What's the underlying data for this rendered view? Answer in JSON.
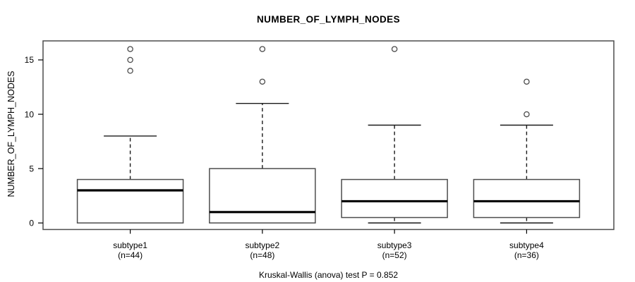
{
  "chart_data": {
    "type": "boxplot",
    "title": "NUMBER_OF_LYMPH_NODES",
    "xlabel": "",
    "ylabel": "NUMBER_OF_LYMPH_NODES",
    "yticks": [
      0,
      5,
      10,
      15
    ],
    "ylim": [
      -0.6,
      16.75
    ],
    "grid": false,
    "legend": "none",
    "caption": "Kruskal-Wallis (anova) test P = 0.852",
    "groups": [
      {
        "label": "subtype1",
        "sublabel": "(n=44)",
        "n": 44,
        "whisker_low": 0,
        "q1": 0,
        "median": 3,
        "q3": 4,
        "whisker_high": 8,
        "outliers": [
          14,
          15,
          16
        ]
      },
      {
        "label": "subtype2",
        "sublabel": "(n=48)",
        "n": 48,
        "whisker_low": 0,
        "q1": 0,
        "median": 1,
        "q3": 5,
        "whisker_high": 11,
        "outliers": [
          13,
          16
        ]
      },
      {
        "label": "subtype3",
        "sublabel": "(n=52)",
        "n": 52,
        "whisker_low": 0,
        "q1": 0.5,
        "median": 2,
        "q3": 4,
        "whisker_high": 9,
        "outliers": [
          16
        ]
      },
      {
        "label": "subtype4",
        "sublabel": "(n=36)",
        "n": 36,
        "whisker_low": 0,
        "q1": 0.5,
        "median": 2,
        "q3": 4,
        "whisker_high": 9,
        "outliers": [
          10,
          13
        ]
      }
    ]
  },
  "colors": {
    "background": "#ffffff",
    "frame": "#4d4d4d",
    "box_border": "#4d4d4d",
    "box_fill": "#ffffff",
    "median": "#000000",
    "whisker": "#1a1a1a",
    "outlier": "#4d4d4d",
    "text": "#000000"
  }
}
